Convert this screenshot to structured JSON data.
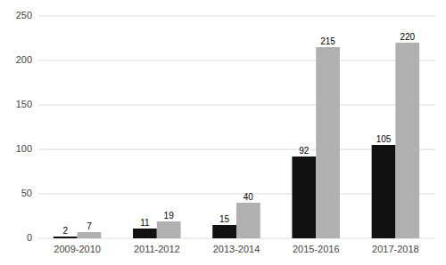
{
  "chart_data": {
    "type": "bar",
    "categories": [
      "2009-2010",
      "2011-2012",
      "2013-2014",
      "2015-2016",
      "2017-2018"
    ],
    "series": [
      {
        "color": "#111111",
        "values": [
          2,
          11,
          15,
          92,
          105
        ]
      },
      {
        "color": "#b0b0b0",
        "values": [
          7,
          19,
          40,
          215,
          220
        ]
      }
    ],
    "ylim": [
      0,
      250
    ],
    "yticks": [
      0,
      50,
      100,
      150,
      200,
      250
    ],
    "grid": true,
    "data_labels": true
  }
}
